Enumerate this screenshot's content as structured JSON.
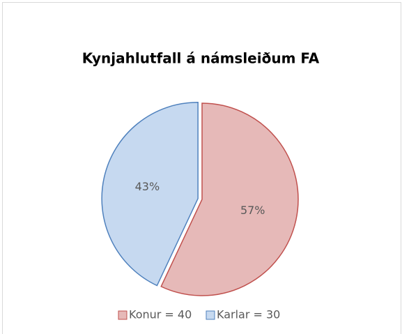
{
  "chart_data": {
    "type": "pie",
    "title": "Kynjahlutfall á námsleiðum FA",
    "categories": [
      "Konur = 40",
      "Karlar = 30"
    ],
    "values": [
      57,
      43
    ],
    "value_labels": [
      "57%",
      "43%"
    ],
    "colors": [
      "#e6b9b8",
      "#c6d9f0"
    ],
    "edge_colors": [
      "#c0504d",
      "#4f81bd"
    ],
    "legend": "bottom"
  }
}
